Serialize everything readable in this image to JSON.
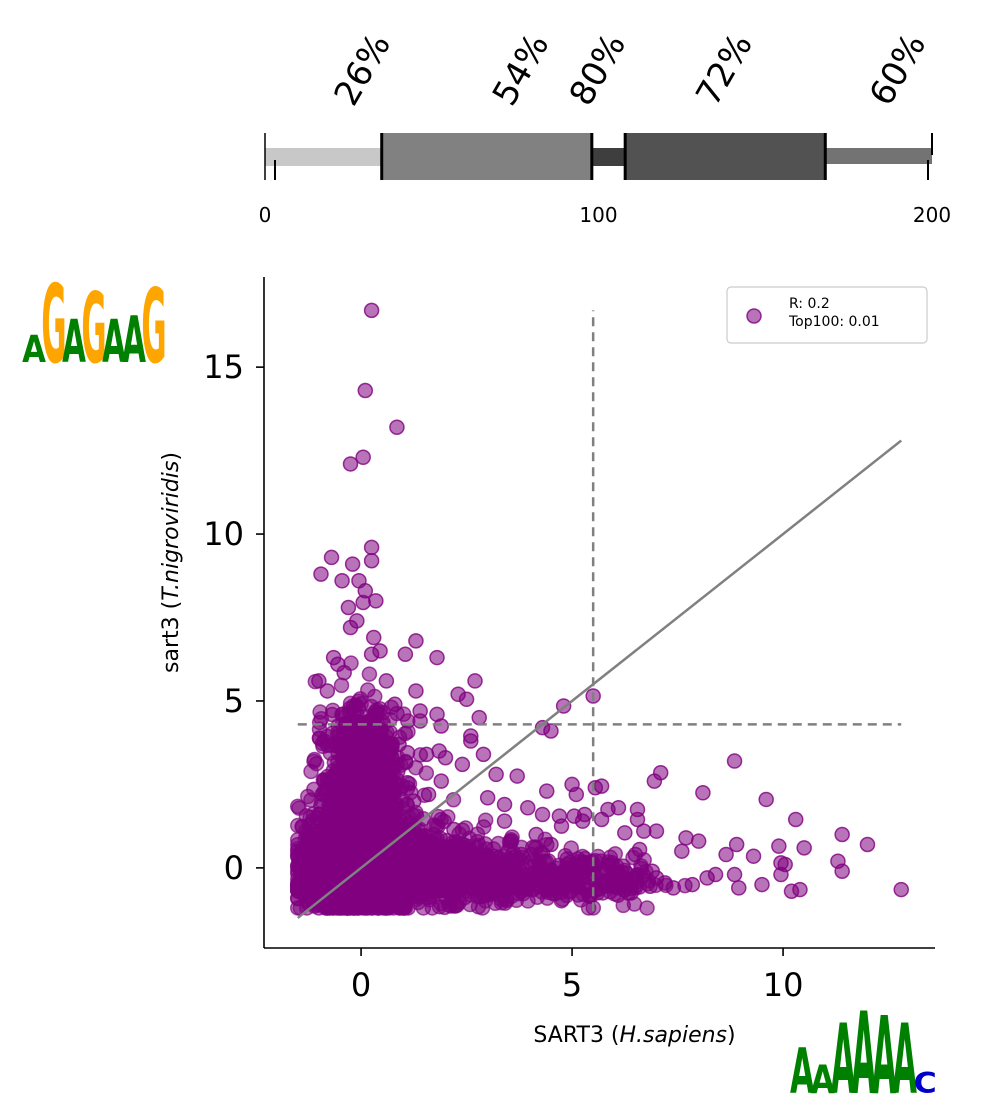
{
  "chart_data": [
    {
      "type": "bar",
      "name": "alignment-identity-track",
      "axis": {
        "min": 0,
        "max": 200,
        "tick_labels": [
          "0",
          "100",
          "200"
        ],
        "ticks": [
          0,
          100,
          200
        ]
      },
      "segments": [
        {
          "start": 0,
          "end": 35,
          "identity": 26,
          "label": "26%",
          "color": "#c8c8c8"
        },
        {
          "start": 35,
          "end": 98,
          "identity": 54,
          "label": "54%",
          "color": "#818181"
        },
        {
          "start": 98,
          "end": 108,
          "identity": 80,
          "label": "80%",
          "color": "#3e3e3e"
        },
        {
          "start": 108,
          "end": 168,
          "identity": 72,
          "label": "72%",
          "color": "#525252"
        },
        {
          "start": 168,
          "end": 200,
          "identity": 60,
          "label": "60%",
          "color": "#737373"
        }
      ]
    },
    {
      "type": "scatter",
      "name": "sart3-scatter",
      "xlabel": {
        "prefix": "SART3 (",
        "species": "H.sapiens",
        "suffix": ")"
      },
      "ylabel": {
        "prefix": "sart3 (",
        "species": "T.nigroviridis",
        "suffix": ")"
      },
      "x_ticks": [
        0,
        5,
        10
      ],
      "y_ticks": [
        0,
        5,
        10,
        15
      ],
      "x_tick_labels": [
        "0",
        "5",
        "10"
      ],
      "y_tick_labels": [
        "0",
        "5",
        "10",
        "15"
      ],
      "xlim": [
        -2.3,
        13.6
      ],
      "ylim": [
        -2.4,
        17.7
      ],
      "point_color": "#800080",
      "legend": {
        "lines": [
          "R: 0.2",
          "Top100: 0.01"
        ],
        "position": "top-right"
      },
      "fit_line": {
        "x": [
          -1.5,
          12.8
        ],
        "y": [
          -1.5,
          12.8
        ]
      },
      "vertical_threshold": {
        "x": 5.5,
        "y_range": [
          -1.3,
          16.7
        ]
      },
      "horizontal_threshold": {
        "y": 4.3,
        "x_range": [
          -1.5,
          12.8
        ]
      },
      "points": [
        [
          0.25,
          16.7
        ],
        [
          0.1,
          14.3
        ],
        [
          0.85,
          13.2
        ],
        [
          0.05,
          12.3
        ],
        [
          -0.25,
          12.1
        ],
        [
          0.25,
          9.6
        ],
        [
          0.25,
          9.2
        ],
        [
          -0.2,
          9.1
        ],
        [
          -0.7,
          9.3
        ],
        [
          -0.95,
          8.8
        ],
        [
          -0.05,
          8.6
        ],
        [
          -0.45,
          8.6
        ],
        [
          0.1,
          8.3
        ],
        [
          0.35,
          8.0
        ],
        [
          0.05,
          7.95
        ],
        [
          -0.3,
          7.8
        ],
        [
          -0.25,
          7.2
        ],
        [
          -0.1,
          7.4
        ],
        [
          0.3,
          6.9
        ],
        [
          0.25,
          6.4
        ],
        [
          0.45,
          6.5
        ],
        [
          1.3,
          6.8
        ],
        [
          1.05,
          6.4
        ],
        [
          1.8,
          6.3
        ],
        [
          2.7,
          5.6
        ],
        [
          2.3,
          5.2
        ],
        [
          2.5,
          5.05
        ],
        [
          1.3,
          5.3
        ],
        [
          5.5,
          5.15
        ],
        [
          4.8,
          4.85
        ],
        [
          1.8,
          4.6
        ],
        [
          0.8,
          4.9
        ],
        [
          1.4,
          4.7
        ],
        [
          2.8,
          4.5
        ],
        [
          -0.65,
          6.3
        ],
        [
          -0.55,
          6.1
        ],
        [
          -1.0,
          5.6
        ],
        [
          -0.8,
          5.3
        ],
        [
          -0.4,
          5.85
        ],
        [
          0.6,
          5.6
        ],
        [
          4.3,
          4.2
        ],
        [
          4.5,
          4.1
        ],
        [
          2.6,
          3.95
        ],
        [
          2.6,
          3.8
        ],
        [
          2.9,
          3.4
        ],
        [
          3.2,
          2.8
        ],
        [
          3.7,
          2.75
        ],
        [
          2.4,
          3.1
        ],
        [
          1.85,
          3.5
        ],
        [
          2.0,
          3.3
        ],
        [
          5.0,
          2.5
        ],
        [
          5.55,
          2.4
        ],
        [
          5.7,
          2.45
        ],
        [
          4.4,
          2.3
        ],
        [
          3.0,
          2.1
        ],
        [
          3.4,
          1.9
        ],
        [
          5.1,
          2.2
        ],
        [
          6.95,
          2.6
        ],
        [
          7.1,
          2.85
        ],
        [
          8.85,
          3.2
        ],
        [
          8.1,
          2.25
        ],
        [
          9.6,
          2.05
        ],
        [
          10.3,
          1.45
        ],
        [
          11.4,
          1.0
        ],
        [
          12.0,
          0.7
        ],
        [
          10.5,
          0.6
        ],
        [
          9.9,
          0.65
        ],
        [
          8.9,
          0.7
        ],
        [
          8.65,
          0.4
        ],
        [
          9.3,
          0.35
        ],
        [
          9.95,
          0.15
        ],
        [
          10.05,
          0.1
        ],
        [
          11.3,
          0.2
        ],
        [
          11.4,
          -0.1
        ],
        [
          12.8,
          -0.65
        ],
        [
          10.4,
          -0.65
        ],
        [
          10.2,
          -0.7
        ],
        [
          9.95,
          -0.2
        ],
        [
          9.5,
          -0.5
        ],
        [
          8.95,
          -0.6
        ],
        [
          8.85,
          -0.2
        ],
        [
          8.2,
          -0.3
        ],
        [
          7.85,
          -0.5
        ],
        [
          8.4,
          -0.2
        ],
        [
          7.6,
          0.5
        ],
        [
          7.7,
          0.9
        ],
        [
          8.0,
          0.8
        ],
        [
          7.0,
          1.1
        ],
        [
          6.7,
          1.1
        ],
        [
          6.55,
          1.45
        ],
        [
          6.55,
          1.75
        ],
        [
          6.1,
          1.8
        ],
        [
          5.85,
          1.75
        ],
        [
          5.3,
          1.6
        ],
        [
          5.25,
          1.4
        ],
        [
          5.7,
          1.45
        ],
        [
          5.05,
          1.55
        ],
        [
          4.7,
          1.55
        ],
        [
          4.3,
          1.6
        ],
        [
          3.95,
          1.8
        ],
        [
          3.4,
          1.4
        ],
        [
          4.75,
          1.25
        ],
        [
          6.25,
          1.05
        ],
        [
          6.6,
          0.55
        ],
        [
          6.5,
          0.4
        ],
        [
          6.9,
          -0.1
        ],
        [
          7.2,
          -0.45
        ],
        [
          7.4,
          -0.6
        ],
        [
          7.0,
          -0.3
        ],
        [
          6.85,
          -0.55
        ],
        [
          6.4,
          -0.75
        ],
        [
          6.1,
          -0.2
        ],
        [
          5.6,
          -0.75
        ],
        [
          5.35,
          0.15
        ],
        [
          4.7,
          -0.35
        ],
        [
          4.5,
          0.7
        ],
        [
          4.15,
          1.0
        ],
        [
          3.75,
          -0.4
        ],
        [
          3.35,
          -0.5
        ],
        [
          3.8,
          0.4
        ],
        [
          2.2,
          1.15
        ],
        [
          1.5,
          0.95
        ],
        [
          2.6,
          -0.6
        ],
        [
          2.05,
          -0.7
        ],
        [
          0.7,
          -1.0
        ],
        [
          1.9,
          4.25
        ],
        [
          1.4,
          4.4
        ],
        [
          0.9,
          3.7
        ],
        [
          1.1,
          3.45
        ],
        [
          1.55,
          3.4
        ],
        [
          1.9,
          2.6
        ],
        [
          1.6,
          2.2
        ],
        [
          1.1,
          2.55
        ],
        [
          1.25,
          2.0
        ],
        [
          0.75,
          1.9
        ]
      ],
      "clusters": [
        {
          "cx": 0.05,
          "cy": 1.5,
          "sx": 0.55,
          "sy": 1.4,
          "n": 850
        },
        {
          "cx": 0.0,
          "cy": -0.4,
          "sx": 0.8,
          "sy": 0.45,
          "n": 650
        },
        {
          "cx": 1.6,
          "cy": 0.05,
          "sx": 1.1,
          "sy": 0.55,
          "n": 520
        },
        {
          "cx": 3.6,
          "cy": -0.3,
          "sx": 1.3,
          "sy": 0.4,
          "n": 260
        },
        {
          "cx": 0.05,
          "cy": 3.3,
          "sx": 0.35,
          "sy": 0.9,
          "n": 220
        },
        {
          "cx": -0.9,
          "cy": 0.2,
          "sx": 0.35,
          "sy": 0.8,
          "n": 180
        },
        {
          "cx": 5.5,
          "cy": -0.4,
          "sx": 0.9,
          "sy": 0.35,
          "n": 90
        }
      ]
    }
  ],
  "logos": {
    "top_left": {
      "letters": [
        "A",
        "G",
        "A",
        "G",
        "A",
        "A",
        "G"
      ],
      "colors": [
        "#008000",
        "#ffa500",
        "#008000",
        "#ffa500",
        "#008000",
        "#008000",
        "#ffa500"
      ],
      "heights": [
        0.35,
        1.0,
        0.55,
        0.9,
        0.55,
        0.6,
        0.95
      ]
    },
    "bottom_right": {
      "letters": [
        "A",
        "A",
        "A",
        "A",
        "A",
        "A",
        "C"
      ],
      "colors": [
        "#008000",
        "#008000",
        "#008000",
        "#008000",
        "#008000",
        "#008000",
        "#0000cc"
      ],
      "heights": [
        0.55,
        0.35,
        0.85,
        1.0,
        0.95,
        0.85,
        0.25
      ]
    }
  }
}
